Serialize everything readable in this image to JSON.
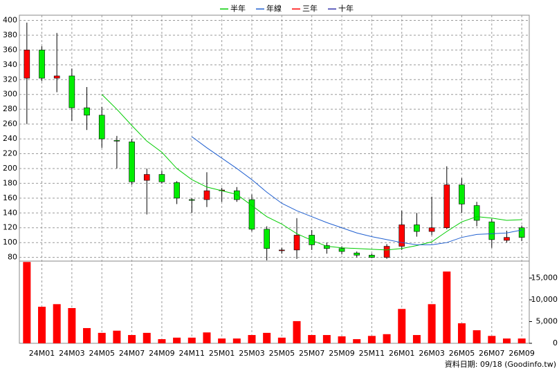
{
  "chart_data": [
    {
      "type": "candlestick",
      "categories": [
        null,
        "24M01",
        null,
        "24M03",
        null,
        "24M05",
        null,
        "24M07",
        null,
        "24M09",
        null,
        "24M11",
        null,
        "25M01",
        null,
        "25M03",
        null,
        "25M05",
        null,
        "25M07",
        null,
        "25M09",
        null,
        "25M11",
        null,
        "26M01",
        null,
        "26M03",
        null,
        "26M05",
        null,
        "26M07",
        null,
        "26M09"
      ],
      "open": [
        322,
        360,
        322,
        325,
        282,
        272,
        238,
        236,
        184,
        192,
        181,
        158,
        158,
        170,
        170,
        158,
        118,
        89,
        90,
        110,
        96,
        92,
        86,
        83,
        80,
        95,
        124,
        115,
        120,
        178,
        150,
        128,
        103,
        120
      ],
      "high": [
        397,
        365,
        383,
        335,
        310,
        283,
        244,
        240,
        200,
        197,
        183,
        160,
        195,
        174,
        175,
        165,
        122,
        93,
        133,
        117,
        100,
        95,
        88,
        85,
        98,
        143,
        140,
        162,
        203,
        187,
        155,
        132,
        116,
        123
      ],
      "low": [
        260,
        318,
        303,
        264,
        252,
        228,
        200,
        178,
        138,
        180,
        152,
        140,
        148,
        155,
        155,
        115,
        76,
        85,
        78,
        90,
        85,
        84,
        80,
        79,
        78,
        90,
        108,
        110,
        118,
        140,
        122,
        93,
        100,
        102
      ],
      "close": [
        360,
        322,
        325,
        282,
        272,
        240,
        237,
        182,
        192,
        182,
        160,
        157,
        170,
        171,
        158,
        118,
        92,
        90,
        110,
        97,
        92,
        88,
        83,
        80,
        95,
        124,
        115,
        120,
        178,
        152,
        130,
        104,
        107,
        107
      ],
      "up_color": "#ff0000",
      "down_color": "#00ee00",
      "series": [
        {
          "name": "半年",
          "color": "#00cc00",
          "values": [
            null,
            null,
            null,
            null,
            null,
            300,
            280,
            258,
            237,
            222,
            200,
            185,
            175,
            170,
            165,
            150,
            135,
            125,
            112,
            103,
            95,
            93,
            92,
            91,
            90,
            92,
            96,
            101,
            115,
            128,
            135,
            133,
            130,
            131
          ]
        },
        {
          "name": "年線",
          "color": "#1f5fd0",
          "values": [
            null,
            null,
            null,
            null,
            null,
            null,
            null,
            null,
            null,
            null,
            null,
            243,
            228,
            214,
            200,
            185,
            168,
            153,
            143,
            135,
            127,
            120,
            113,
            108,
            104,
            100,
            97,
            97,
            100,
            107,
            111,
            112,
            113,
            117
          ]
        },
        {
          "name": "三年",
          "color": "#ff0000",
          "values": [
            null,
            null,
            null,
            null,
            null,
            null,
            null,
            null,
            null,
            null,
            null,
            null,
            null,
            null,
            null,
            null,
            null,
            null,
            null,
            null,
            null,
            null,
            null,
            null,
            null,
            null,
            null,
            null,
            null,
            null,
            null,
            null,
            null,
            null
          ]
        },
        {
          "name": "十年",
          "color": "#3333aa",
          "values": [
            null,
            null,
            null,
            null,
            null,
            null,
            null,
            null,
            null,
            null,
            null,
            null,
            null,
            null,
            null,
            null,
            null,
            null,
            null,
            null,
            null,
            null,
            null,
            null,
            null,
            null,
            null,
            null,
            null,
            null,
            null,
            null,
            null,
            null
          ]
        }
      ],
      "ylim": [
        75,
        407
      ],
      "yticks": [
        80,
        100,
        120,
        140,
        160,
        180,
        200,
        220,
        240,
        260,
        280,
        300,
        320,
        340,
        360,
        380,
        400
      ],
      "grid": true
    },
    {
      "type": "bar",
      "values": [
        18700,
        8400,
        9000,
        8100,
        3500,
        2400,
        2900,
        1900,
        2400,
        950,
        1300,
        1300,
        2500,
        1100,
        1100,
        1900,
        2400,
        1300,
        5100,
        1900,
        1900,
        1600,
        950,
        1700,
        2100,
        7900,
        1900,
        9000,
        16500,
        4600,
        3000,
        1700,
        1100,
        1100
      ],
      "color": "#ff0000",
      "ylim": [
        0,
        18900
      ],
      "yticks": [
        0,
        {
          "value": 5000,
          "label": "5,000"
        },
        {
          "value": 10000,
          "label": "10,000"
        },
        {
          "value": 15000,
          "label": "15,000"
        }
      ],
      "source": "資料日期: 09/18 (Goodinfo.tw)"
    }
  ]
}
